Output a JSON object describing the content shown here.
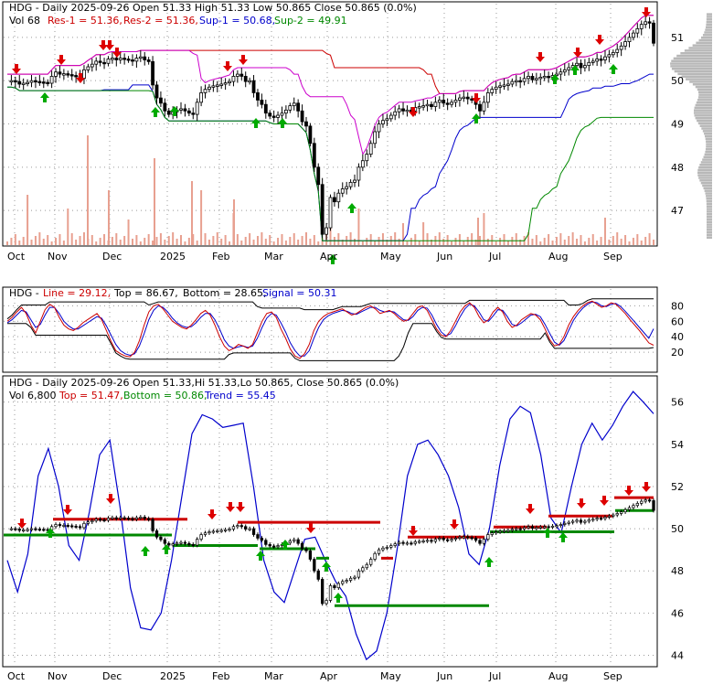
{
  "chart_data": [
    {
      "type": "candlestick",
      "panel": "price",
      "title": "HDG - Daily 2025-09-26 Open 51.33  High 51.33  Low 50.865  Close 50.865 (0.0%)",
      "legend": {
        "vol": "Vol 68",
        "res1": "Res-1 = 51.36,",
        "res2": "Res-2 = 51.36,",
        "sup1": "Sup-1 = 50.68,",
        "sup2": "Sup-2 = 49.91"
      },
      "ohlc": {
        "open": 51.33,
        "high": 51.33,
        "low": 50.865,
        "close": 50.865,
        "change_pct": 0.0
      },
      "levels": {
        "res1": 51.36,
        "res2": 51.36,
        "sup1": 50.68,
        "sup2": 49.91
      },
      "y_ticks": [
        "51",
        "50",
        "49",
        "48",
        "47"
      ],
      "ylim": [
        46.2,
        51.8
      ],
      "months": [
        "Oct",
        "Nov",
        "Dec",
        "2025",
        "Feb",
        "Mar",
        "Apr",
        "May",
        "Jun",
        "Jul",
        "Aug",
        "Sep"
      ],
      "close_series": [
        50.0,
        50.0,
        49.98,
        49.92,
        49.94,
        49.96,
        50.0,
        49.98,
        49.97,
        49.96,
        49.94,
        50.1,
        50.2,
        50.15,
        50.16,
        50.14,
        50.12,
        50.1,
        50.05,
        50.25,
        50.32,
        50.38,
        50.45,
        50.42,
        50.4,
        50.5,
        50.52,
        50.48,
        50.52,
        50.5,
        50.48,
        50.45,
        50.52,
        50.55,
        50.48,
        50.44,
        49.9,
        49.6,
        49.48,
        49.3,
        49.22,
        49.28,
        49.32,
        49.35,
        49.3,
        49.25,
        49.22,
        49.5,
        49.72,
        49.8,
        49.85,
        49.88,
        49.9,
        49.92,
        49.95,
        49.98,
        50.1,
        50.15,
        50.1,
        49.98,
        50.0,
        49.72,
        49.55,
        49.45,
        49.25,
        49.18,
        49.15,
        49.2,
        49.25,
        49.32,
        49.42,
        49.48,
        49.3,
        49.05,
        48.95,
        48.55,
        48.0,
        47.6,
        46.45,
        46.6,
        47.3,
        47.2,
        47.4,
        47.5,
        47.55,
        47.65,
        47.7,
        48.0,
        48.15,
        48.3,
        48.55,
        48.82,
        49.0,
        49.08,
        49.12,
        49.2,
        49.28,
        49.35,
        49.3,
        49.32,
        49.3,
        49.38,
        49.4,
        49.42,
        49.45,
        49.4,
        49.5,
        49.55,
        49.48,
        49.45,
        49.5,
        49.55,
        49.6,
        49.62,
        49.58,
        49.55,
        49.45,
        49.3,
        49.5,
        49.72,
        49.8,
        49.85,
        49.88,
        49.9,
        49.92,
        49.98,
        50.0,
        49.98,
        50.05,
        50.1,
        50.02,
        50.05,
        50.08,
        50.1,
        50.08,
        50.12,
        50.15,
        50.2,
        50.25,
        50.3,
        50.35,
        50.4,
        50.3,
        50.35,
        50.42,
        50.45,
        50.5,
        50.48,
        50.55,
        50.6,
        50.65,
        50.72,
        50.8,
        50.9,
        51.0,
        51.1,
        51.2,
        51.3,
        51.36,
        51.33,
        50.865
      ],
      "volume_bars_visible": true
    },
    {
      "type": "line",
      "panel": "stochastic",
      "title": "HDG - Line = 29.12, Top = 86.67, Bottom = 28.65, Signal = 50.31",
      "labels": {
        "line": "Line = 29.12,",
        "top": "Top = 86.67,",
        "bottom": "Bottom = 28.65,",
        "signal": "Signal = 50.31"
      },
      "values": {
        "line": 29.12,
        "top": 86.67,
        "bottom": 28.65,
        "signal": 50.31
      },
      "y_ticks": [
        "80",
        "60",
        "40",
        "20"
      ],
      "ylim": [
        0,
        100
      ],
      "line_series": [
        60,
        65,
        72,
        78,
        70,
        55,
        45,
        60,
        75,
        82,
        78,
        65,
        55,
        50,
        48,
        52,
        58,
        62,
        66,
        70,
        62,
        48,
        34,
        22,
        18,
        15,
        14,
        20,
        35,
        55,
        72,
        80,
        82,
        76,
        68,
        60,
        56,
        52,
        50,
        55,
        62,
        70,
        74,
        68,
        55,
        40,
        28,
        22,
        25,
        30,
        28,
        25,
        30,
        45,
        60,
        70,
        72,
        65,
        50,
        38,
        24,
        15,
        12,
        18,
        30,
        48,
        60,
        66,
        70,
        72,
        74,
        76,
        72,
        68,
        70,
        74,
        78,
        80,
        76,
        70,
        72,
        74,
        70,
        64,
        60,
        62,
        70,
        78,
        80,
        74,
        62,
        50,
        42,
        40,
        48,
        60,
        72,
        80,
        84,
        78,
        66,
        58,
        62,
        72,
        78,
        72,
        60,
        52,
        55,
        62,
        66,
        70,
        68,
        62,
        50,
        36,
        28,
        30,
        40,
        55,
        66,
        74,
        80,
        84,
        86,
        82,
        78,
        80,
        84,
        82,
        76,
        70,
        62,
        55,
        48,
        40,
        32,
        29
      ],
      "signal_series": [
        58,
        62,
        68,
        74,
        72,
        62,
        52,
        56,
        68,
        78,
        78,
        70,
        60,
        54,
        50,
        50,
        54,
        58,
        62,
        66,
        64,
        54,
        42,
        30,
        22,
        18,
        16,
        18,
        28,
        44,
        62,
        74,
        80,
        78,
        72,
        64,
        58,
        54,
        52,
        53,
        58,
        65,
        70,
        70,
        62,
        50,
        36,
        28,
        25,
        27,
        28,
        26,
        28,
        38,
        52,
        64,
        70,
        68,
        58,
        46,
        32,
        22,
        15,
        15,
        22,
        38,
        52,
        62,
        67,
        70,
        72,
        74,
        73,
        70,
        69,
        72,
        75,
        78,
        78,
        74,
        72,
        73,
        72,
        67,
        62,
        61,
        66,
        74,
        78,
        77,
        68,
        56,
        46,
        41,
        44,
        54,
        66,
        76,
        82,
        80,
        72,
        62,
        60,
        67,
        75,
        74,
        66,
        56,
        54,
        58,
        63,
        68,
        69,
        66,
        56,
        44,
        33,
        29,
        35,
        48,
        61,
        70,
        77,
        82,
        85,
        84,
        80,
        79,
        82,
        83,
        79,
        73,
        66,
        59,
        52,
        45,
        38,
        50.31
      ]
    },
    {
      "type": "candlestick",
      "panel": "trend",
      "title": "HDG - Daily 2025-09-26 Open 51.33,Hi 51.33,Lo 50.865, Close 50.865 (0.0%)",
      "legend": {
        "vol": "Vol 6,800",
        "top": "Top = 51.47,",
        "bottom": "Bottom = 50.86,",
        "trend": "Trend = 55.45"
      },
      "values": {
        "top": 51.47,
        "bottom": 50.86,
        "trend": 55.45
      },
      "y_ticks": [
        "56",
        "54",
        "52",
        "50",
        "48",
        "46",
        "44"
      ],
      "ylim": [
        43.5,
        57.2
      ],
      "trend_series": [
        48.5,
        47.0,
        48.8,
        52.5,
        53.8,
        52.0,
        49.2,
        48.5,
        50.8,
        53.5,
        54.2,
        51.0,
        47.2,
        45.3,
        45.2,
        46.0,
        48.5,
        51.5,
        54.5,
        55.4,
        55.2,
        54.8,
        54.9,
        55.0,
        52.0,
        48.5,
        47.0,
        46.5,
        48.0,
        49.5,
        49.6,
        48.5,
        47.5,
        46.8,
        45.0,
        43.8,
        44.2,
        46.0,
        49.0,
        52.5,
        54.0,
        54.2,
        53.5,
        52.5,
        51.0,
        48.8,
        48.3,
        50.0,
        53.0,
        55.2,
        55.8,
        55.5,
        53.5,
        50.5,
        49.8,
        52.0,
        54.0,
        55.0,
        54.2,
        54.9,
        55.8,
        56.5,
        56.0,
        55.45
      ]
    }
  ]
}
